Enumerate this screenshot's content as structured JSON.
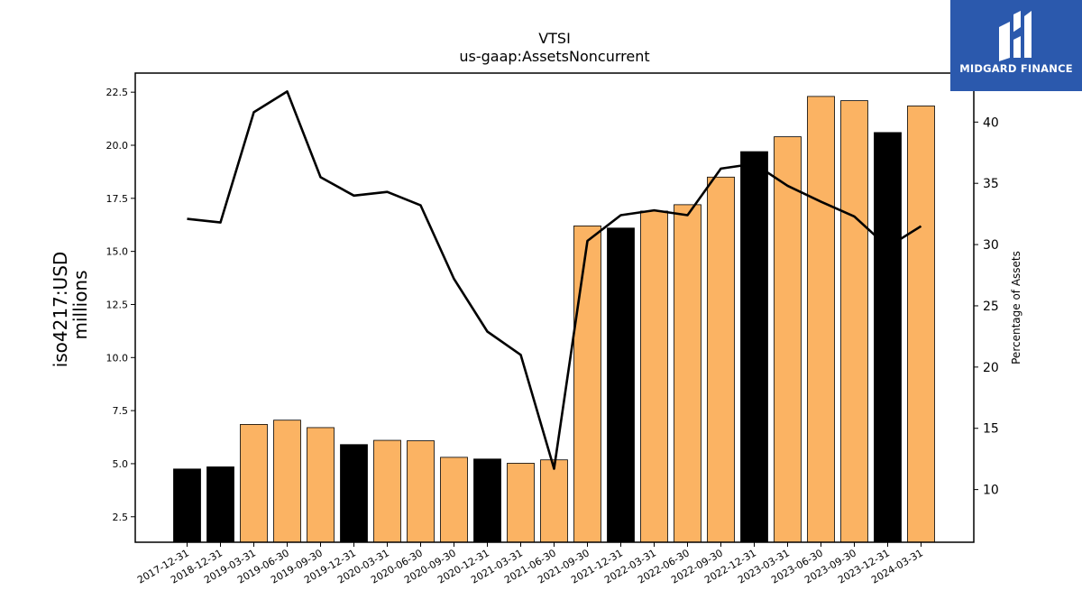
{
  "chart_data": {
    "type": "bar",
    "title": "VTSI",
    "subtitle": "us-gaap:AssetsNoncurrent",
    "ylabel": "iso4217:USD",
    "ylabel_unit": "millions",
    "y2label": "Percentage of Assets",
    "categories": [
      "2017-12-31",
      "2018-12-31",
      "2019-03-31",
      "2019-06-30",
      "2019-09-30",
      "2019-12-31",
      "2020-03-31",
      "2020-06-30",
      "2020-09-30",
      "2020-12-31",
      "2021-03-31",
      "2021-06-30",
      "2021-09-30",
      "2021-12-31",
      "2022-03-31",
      "2022-06-30",
      "2022-09-30",
      "2022-12-31",
      "2023-03-31",
      "2023-06-30",
      "2023-09-30",
      "2023-12-31",
      "2024-03-31"
    ],
    "series": [
      {
        "kind": "bar",
        "axis": "left",
        "values": [
          4.75,
          4.85,
          6.85,
          7.05,
          6.7,
          5.9,
          6.1,
          6.08,
          5.3,
          5.22,
          5.02,
          5.18,
          16.2,
          16.1,
          16.9,
          17.2,
          18.5,
          19.7,
          20.4,
          22.3,
          22.1,
          20.6,
          21.85
        ],
        "colors": [
          "#000000",
          "#000000",
          "#fbb363",
          "#fbb363",
          "#fbb363",
          "#000000",
          "#fbb363",
          "#fbb363",
          "#fbb363",
          "#000000",
          "#fbb363",
          "#fbb363",
          "#fbb363",
          "#000000",
          "#fbb363",
          "#fbb363",
          "#fbb363",
          "#000000",
          "#fbb363",
          "#fbb363",
          "#fbb363",
          "#000000",
          "#fbb363"
        ]
      },
      {
        "kind": "line",
        "axis": "right",
        "color": "#000000",
        "values": [
          32.1,
          31.8,
          40.8,
          42.5,
          35.5,
          34.0,
          34.3,
          33.2,
          27.2,
          22.9,
          21.0,
          11.7,
          30.3,
          32.4,
          32.8,
          32.4,
          36.2,
          36.6,
          34.8,
          33.5,
          32.3,
          29.8,
          31.5
        ]
      }
    ],
    "ylim": [
      1.3,
      23.4
    ],
    "yticks": [
      "2.5",
      "5.0",
      "7.5",
      "10.0",
      "12.5",
      "15.0",
      "17.5",
      "20.0",
      "22.5"
    ],
    "y2lim": [
      5.7,
      44.0
    ],
    "y2ticks": [
      "10",
      "15",
      "20",
      "25",
      "30",
      "35",
      "40"
    ],
    "grid": false
  },
  "logo": {
    "text": "MIDGARD FINANCE",
    "accent": "#2b59ad"
  }
}
